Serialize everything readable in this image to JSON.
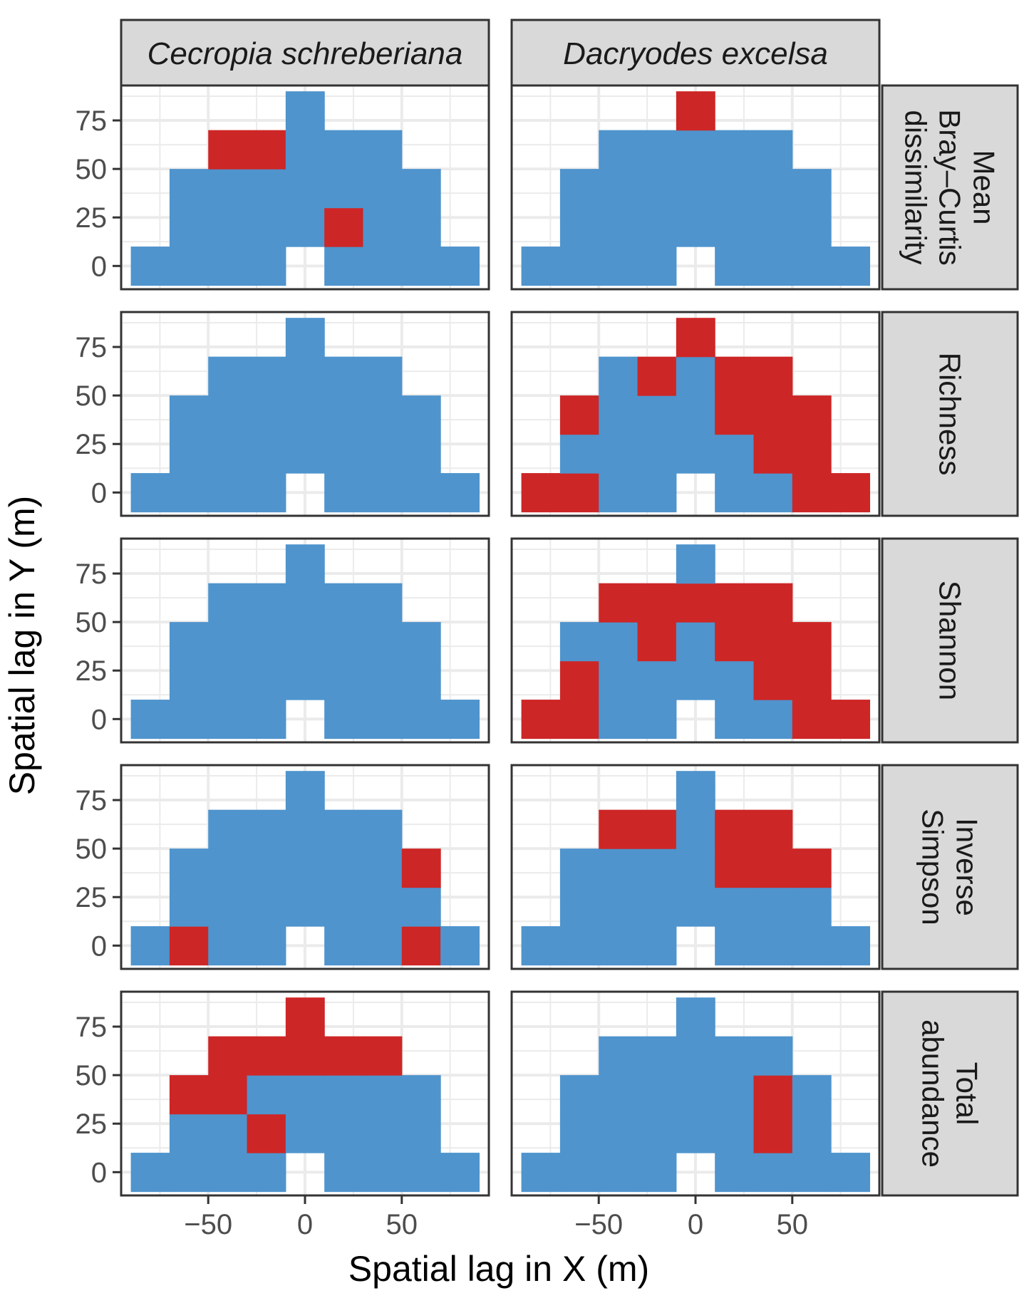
{
  "chart_data": {
    "type": "heatmap",
    "xlabel": "Spatial lag in X (m)",
    "ylabel": "Spatial lag in Y (m)",
    "xlim": [
      -95,
      95
    ],
    "ylim": [
      -12,
      93
    ],
    "x_ticks": [
      -50,
      0,
      50
    ],
    "x_tick_labels": [
      "−50",
      "0",
      "50"
    ],
    "y_ticks": [
      0,
      25,
      50,
      75
    ],
    "y_tick_labels": [
      "0",
      "25",
      "50",
      "75"
    ],
    "cell_size": [
      20,
      20
    ],
    "grid": true,
    "colors": {
      "blue": "#4f94cd",
      "red": "#cd2626",
      "strip_bg": "#d9d9d9",
      "border": "#333333",
      "grid": "#ebebeb"
    },
    "columns": [
      "Cecropia schreberiana",
      "Dacryodes excelsa"
    ],
    "rows": [
      [
        "Mean",
        "Bray–Curtis",
        "dissimilarity"
      ],
      [
        "Richness"
      ],
      [
        "Shannon"
      ],
      [
        "Inverse",
        "Simpson"
      ],
      [
        "Total",
        "abundance"
      ]
    ],
    "cell_x": [
      -80,
      -60,
      -40,
      -20,
      0,
      20,
      40,
      60,
      80
    ],
    "cell_y": [
      0,
      20,
      40,
      60,
      80
    ],
    "panels": [
      [
        [
          "BBBB.BBBB",
          ".BBBBRBB.",
          ".BBBBBBB.",
          "..RRBBB..",
          "....B...."
        ],
        [
          "BBBB.BBBB",
          ".BBBBBBB.",
          ".BBBBBBB.",
          "..BBBBB..",
          "....R...."
        ]
      ],
      [
        [
          "BBBB.BBBB",
          ".BBBBBBB.",
          ".BBBBBBB.",
          "..BBBBB..",
          "....B...."
        ],
        [
          "RRBB.BBRR",
          ".BBBBBRR.",
          ".RBBBRRR.",
          "..BRBRR..",
          "....R...."
        ]
      ],
      [
        [
          "BBBB.BBBB",
          ".BBBBBBB.",
          ".BBBBBBB.",
          "..BBBBB..",
          "....B...."
        ],
        [
          "RRBB.BBRR",
          ".RBBBBRR.",
          ".BBRBRRR.",
          "..RRRRR..",
          "....B...."
        ]
      ],
      [
        [
          "BRBB.BBRB",
          ".BBBBBBB.",
          ".BBBBBBR.",
          "..BBBBB..",
          "....B...."
        ],
        [
          "BBBB.BBBB",
          ".BBBBBBB.",
          ".BBBBRRR.",
          "..RRBRR..",
          "....B...."
        ]
      ],
      [
        [
          "BBBB.BBBB",
          ".BBRBBBB.",
          ".RRBBBBB.",
          "..RRRRR..",
          "....R...."
        ],
        [
          "BBBB.BBBB",
          ".BBBBBRB.",
          ".BBBBBRB.",
          "..BBBBB..",
          "....B...."
        ]
      ]
    ]
  }
}
